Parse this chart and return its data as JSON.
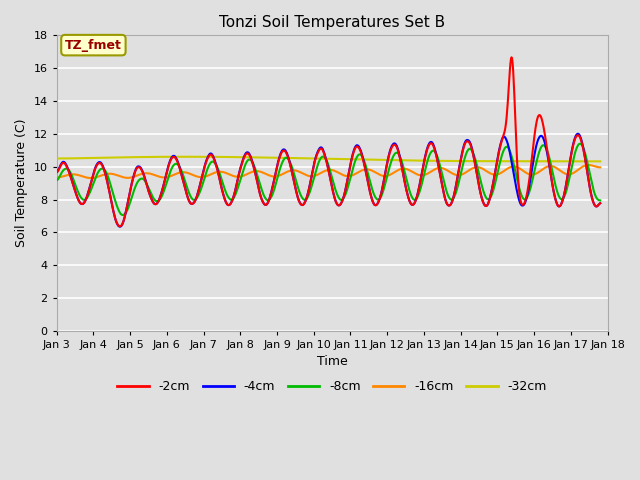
{
  "title": "Tonzi Soil Temperatures Set B",
  "xlabel": "Time",
  "ylabel": "Soil Temperature (C)",
  "ylim": [
    0,
    18
  ],
  "yticks": [
    0,
    2,
    4,
    6,
    8,
    10,
    12,
    14,
    16,
    18
  ],
  "annotation_text": "TZ_fmet",
  "annotation_color": "#990000",
  "annotation_bg": "#ffffcc",
  "annotation_border": "#999900",
  "bg_color": "#e0e0e0",
  "grid_color": "#ffffff",
  "series_colors": {
    "-2cm": "#ff0000",
    "-4cm": "#0000ff",
    "-8cm": "#00bb00",
    "-16cm": "#ff8800",
    "-32cm": "#cccc00"
  },
  "legend_labels": [
    "-2cm",
    "-4cm",
    "-8cm",
    "-16cm",
    "-32cm"
  ],
  "xtick_labels": [
    "Jan 3",
    "Jan 4",
    "Jan 5",
    "Jan 6",
    "Jan 7",
    "Jan 8",
    "Jan 9",
    "Jan 10",
    "Jan 11",
    "Jan 12",
    "Jan 13",
    "Jan 14",
    "Jan 15",
    "Jan 16",
    "Jan 17",
    "Jan 18"
  ],
  "xtick_positions": [
    3,
    4,
    5,
    6,
    7,
    8,
    9,
    10,
    11,
    12,
    13,
    14,
    15,
    16,
    17,
    18
  ],
  "xlim": [
    3,
    18
  ]
}
